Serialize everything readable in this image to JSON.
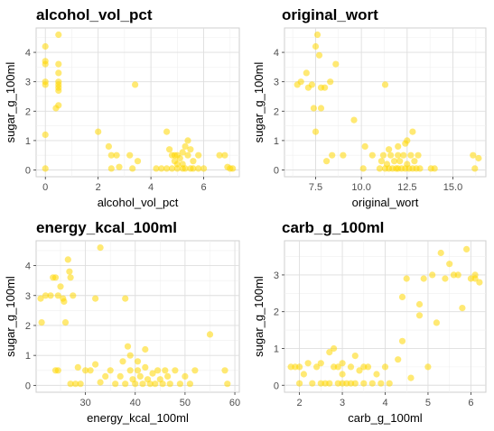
{
  "point_color": "#FFD700",
  "chart_data": [
    {
      "type": "scatter",
      "title": "alcohol_vol_pct",
      "xlabel": "alcohol_vol_pct",
      "ylabel": "sugar_g_100ml",
      "xlim": [
        -0.35,
        7.35
      ],
      "ylim": [
        -0.23,
        4.83
      ],
      "xticks": [
        0,
        2,
        4,
        6
      ],
      "yticks": [
        0,
        1,
        2,
        3,
        4
      ],
      "grid": true,
      "points": [
        [
          0,
          4.2
        ],
        [
          0,
          3.7
        ],
        [
          0,
          3.6
        ],
        [
          0,
          3.0
        ],
        [
          0,
          2.9
        ],
        [
          0,
          1.2
        ],
        [
          0,
          0.05
        ],
        [
          0.5,
          4.6
        ],
        [
          0.5,
          3.6
        ],
        [
          0.5,
          3.3
        ],
        [
          0.5,
          3.0
        ],
        [
          0.5,
          2.9
        ],
        [
          0.5,
          2.8
        ],
        [
          0.5,
          2.7
        ],
        [
          0.5,
          2.2
        ],
        [
          0.4,
          2.1
        ],
        [
          3.4,
          2.9
        ],
        [
          2.0,
          1.3
        ],
        [
          2.4,
          0.8
        ],
        [
          2.5,
          0.5
        ],
        [
          2.7,
          0.5
        ],
        [
          2.8,
          0.1
        ],
        [
          3.2,
          0.5
        ],
        [
          2.5,
          0.05
        ],
        [
          3.3,
          0.05
        ],
        [
          3.5,
          0.3
        ],
        [
          4.2,
          0.05
        ],
        [
          4.6,
          1.3
        ],
        [
          4.7,
          0.7
        ],
        [
          4.8,
          0.5
        ],
        [
          4.9,
          0.3
        ],
        [
          5.0,
          0.5
        ],
        [
          5.0,
          0.05
        ],
        [
          5.1,
          0.4
        ],
        [
          5.2,
          0.6
        ],
        [
          5.2,
          0.2
        ],
        [
          5.3,
          0.8
        ],
        [
          5.3,
          0.05
        ],
        [
          5.4,
          1.0
        ],
        [
          5.4,
          0.5
        ],
        [
          5.5,
          0.7
        ],
        [
          5.5,
          0.05
        ],
        [
          5.6,
          0.3
        ],
        [
          5.6,
          0.05
        ],
        [
          5.8,
          0.5
        ],
        [
          5.8,
          0.05
        ],
        [
          4.4,
          0.05
        ],
        [
          4.6,
          0.05
        ],
        [
          4.8,
          0.05
        ],
        [
          5.0,
          0.2
        ],
        [
          4.9,
          0.5
        ],
        [
          5.2,
          0.05
        ],
        [
          6.0,
          0.05
        ],
        [
          6.6,
          0.5
        ],
        [
          6.8,
          0.5
        ],
        [
          7.0,
          0.05
        ],
        [
          7.1,
          0.05
        ],
        [
          6.9,
          0.1
        ]
      ]
    },
    {
      "type": "scatter",
      "title": "original_wort",
      "xlabel": "original_wort",
      "ylabel": "sugar_g_100ml",
      "xlim": [
        5.8,
        16.8
      ],
      "ylim": [
        -0.23,
        4.83
      ],
      "xticks": [
        7.5,
        10.0,
        12.5,
        15.0
      ],
      "xticklabels": [
        "7.5",
        "10.0",
        "12.5",
        "15.0"
      ],
      "yticks": [
        0,
        1,
        2,
        3,
        4
      ],
      "grid": true,
      "points": [
        [
          6.5,
          2.9
        ],
        [
          6.7,
          3.0
        ],
        [
          7.0,
          3.3
        ],
        [
          7.1,
          2.8
        ],
        [
          7.3,
          2.9
        ],
        [
          7.4,
          2.1
        ],
        [
          7.5,
          4.2
        ],
        [
          7.6,
          4.6
        ],
        [
          7.7,
          3.9
        ],
        [
          7.8,
          2.8
        ],
        [
          8.0,
          2.8
        ],
        [
          8.3,
          3.0
        ],
        [
          8.6,
          3.6
        ],
        [
          7.5,
          1.3
        ],
        [
          7.8,
          2.1
        ],
        [
          8.1,
          0.3
        ],
        [
          8.4,
          0.5
        ],
        [
          9.0,
          0.5
        ],
        [
          9.6,
          1.7
        ],
        [
          10.1,
          0.05
        ],
        [
          10.2,
          0.8
        ],
        [
          10.6,
          0.5
        ],
        [
          11.3,
          2.9
        ],
        [
          11.0,
          0.05
        ],
        [
          11.1,
          0.3
        ],
        [
          11.2,
          0.5
        ],
        [
          11.3,
          0.05
        ],
        [
          11.4,
          0.2
        ],
        [
          11.5,
          0.05
        ],
        [
          11.6,
          0.5
        ],
        [
          11.7,
          0.05
        ],
        [
          11.8,
          0.3
        ],
        [
          11.9,
          0.05
        ],
        [
          12.0,
          0.5
        ],
        [
          12.0,
          0.05
        ],
        [
          12.1,
          0.3
        ],
        [
          12.2,
          0.05
        ],
        [
          12.3,
          0.5
        ],
        [
          12.4,
          0.05
        ],
        [
          12.5,
          0.2
        ],
        [
          12.6,
          0.05
        ],
        [
          12.7,
          0.5
        ],
        [
          12.8,
          0.05
        ],
        [
          12.9,
          0.3
        ],
        [
          13.0,
          0.05
        ],
        [
          13.1,
          0.5
        ],
        [
          13.2,
          0.05
        ],
        [
          11.5,
          0.7
        ],
        [
          12.0,
          0.8
        ],
        [
          12.5,
          1.0
        ],
        [
          12.8,
          1.3
        ],
        [
          12.4,
          0.9
        ],
        [
          13.8,
          0.05
        ],
        [
          14.0,
          0.05
        ],
        [
          16.1,
          0.5
        ],
        [
          16.2,
          0.05
        ],
        [
          16.4,
          0.4
        ]
      ]
    },
    {
      "type": "scatter",
      "title": "energy_kcal_100ml",
      "xlabel": "energy_kcal_100ml",
      "ylabel": "sugar_g_100ml",
      "xlim": [
        20.1,
        60.9
      ],
      "ylim": [
        -0.23,
        4.83
      ],
      "xticks": [
        30,
        40,
        50,
        60
      ],
      "yticks": [
        0,
        1,
        2,
        3,
        4
      ],
      "grid": true,
      "points": [
        [
          21,
          2.9
        ],
        [
          21.2,
          2.1
        ],
        [
          22,
          3.0
        ],
        [
          23,
          3.0
        ],
        [
          23.5,
          3.6
        ],
        [
          24,
          3.6
        ],
        [
          24.5,
          3.0
        ],
        [
          25,
          3.3
        ],
        [
          25.5,
          2.9
        ],
        [
          25.7,
          2.8
        ],
        [
          26,
          2.1
        ],
        [
          26.5,
          4.2
        ],
        [
          26.8,
          3.8
        ],
        [
          27,
          3.6
        ],
        [
          27.5,
          3.0
        ],
        [
          29,
          0.05
        ],
        [
          32,
          2.9
        ],
        [
          33,
          4.6
        ],
        [
          38,
          2.9
        ],
        [
          38.5,
          1.3
        ],
        [
          24,
          0.5
        ],
        [
          24.5,
          0.5
        ],
        [
          27,
          0.05
        ],
        [
          28,
          0.05
        ],
        [
          28.5,
          0.6
        ],
        [
          30,
          0.5
        ],
        [
          31,
          0.5
        ],
        [
          32,
          0.7
        ],
        [
          33,
          0.1
        ],
        [
          34,
          0.3
        ],
        [
          35,
          0.5
        ],
        [
          36,
          0.05
        ],
        [
          37,
          0.3
        ],
        [
          37.5,
          0.8
        ],
        [
          38,
          0.05
        ],
        [
          39,
          0.5
        ],
        [
          39.5,
          0.2
        ],
        [
          40,
          0.05
        ],
        [
          40.5,
          0.5
        ],
        [
          41,
          0.3
        ],
        [
          41.5,
          0.05
        ],
        [
          42,
          0.6
        ],
        [
          42.5,
          0.2
        ],
        [
          43,
          0.05
        ],
        [
          43.5,
          0.4
        ],
        [
          44,
          0.05
        ],
        [
          44.5,
          0.5
        ],
        [
          45,
          0.2
        ],
        [
          45.5,
          0.05
        ],
        [
          46,
          0.5
        ],
        [
          46.5,
          0.3
        ],
        [
          47,
          0.05
        ],
        [
          48,
          0.5
        ],
        [
          49,
          0.05
        ],
        [
          50,
          0.3
        ],
        [
          51,
          0.05
        ],
        [
          52,
          0.5
        ],
        [
          55,
          1.7
        ],
        [
          58,
          0.5
        ],
        [
          58.5,
          0.05
        ],
        [
          39,
          1.0
        ],
        [
          42,
          1.2
        ],
        [
          40.5,
          0.8
        ]
      ]
    },
    {
      "type": "scatter",
      "title": "carb_g_100ml",
      "xlabel": "carb_g_100ml",
      "ylabel": "sugar_g_100ml",
      "xlim": [
        1.65,
        6.35
      ],
      "ylim": [
        -0.19,
        3.93
      ],
      "xticks": [
        2,
        3,
        4,
        5,
        6
      ],
      "yticks": [
        0,
        1,
        2,
        3
      ],
      "grid": true,
      "points": [
        [
          1.8,
          0.5
        ],
        [
          1.9,
          0.5
        ],
        [
          2.0,
          0.05
        ],
        [
          2.0,
          0.5
        ],
        [
          2.1,
          0.3
        ],
        [
          2.2,
          0.6
        ],
        [
          2.3,
          0.05
        ],
        [
          2.4,
          0.5
        ],
        [
          2.5,
          0.6
        ],
        [
          2.6,
          0.05
        ],
        [
          2.7,
          0.9
        ],
        [
          2.8,
          0.5
        ],
        [
          2.8,
          1.0
        ],
        [
          2.9,
          0.05
        ],
        [
          3.0,
          0.3
        ],
        [
          3.0,
          0.6
        ],
        [
          3.1,
          0.05
        ],
        [
          3.2,
          0.5
        ],
        [
          3.3,
          0.8
        ],
        [
          3.3,
          0.05
        ],
        [
          3.4,
          0.4
        ],
        [
          3.5,
          0.05
        ],
        [
          3.6,
          0.5
        ],
        [
          3.7,
          0.05
        ],
        [
          3.8,
          0.3
        ],
        [
          3.9,
          0.05
        ],
        [
          4.0,
          0.5
        ],
        [
          2.5,
          0.05
        ],
        [
          2.7,
          0.05
        ],
        [
          3.0,
          0.05
        ],
        [
          3.5,
          0.5
        ],
        [
          3.2,
          0.05
        ],
        [
          2.9,
          0.5
        ],
        [
          4.1,
          0.05
        ],
        [
          4.3,
          0.7
        ],
        [
          4.4,
          1.2
        ],
        [
          4.5,
          2.9
        ],
        [
          4.4,
          2.4
        ],
        [
          4.6,
          0.2
        ],
        [
          4.8,
          1.9
        ],
        [
          4.8,
          2.2
        ],
        [
          4.9,
          2.9
        ],
        [
          5.0,
          0.5
        ],
        [
          5.1,
          3.0
        ],
        [
          5.2,
          1.7
        ],
        [
          5.3,
          3.6
        ],
        [
          5.4,
          2.9
        ],
        [
          5.5,
          3.3
        ],
        [
          5.6,
          3.0
        ],
        [
          5.7,
          3.0
        ],
        [
          5.8,
          2.1
        ],
        [
          5.9,
          3.7
        ],
        [
          6.0,
          2.9
        ],
        [
          6.1,
          3.0
        ],
        [
          6.2,
          2.8
        ],
        [
          6.1,
          2.9
        ]
      ]
    }
  ]
}
